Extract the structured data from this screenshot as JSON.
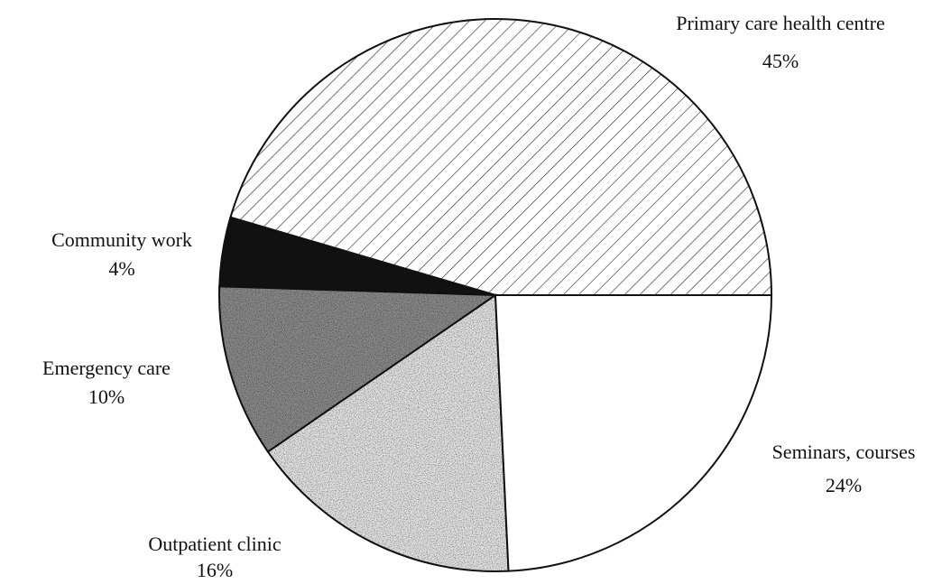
{
  "chart_data": {
    "type": "pie",
    "categories": [
      "Primary care health centre",
      "Community work",
      "Emergency care",
      "Outpatient clinic",
      "Seminars, courses"
    ],
    "values": [
      45,
      4,
      10,
      16,
      24
    ],
    "value_labels": [
      "45%",
      "4%",
      "10%",
      "16%",
      "24%"
    ],
    "colors": [
      "#ffffff",
      "#111111",
      "#8a8a8a",
      "#e4e4e4",
      "#ffffff"
    ],
    "patterns": [
      "hatch",
      "solid",
      "stipple",
      "stipple",
      "solid"
    ]
  }
}
